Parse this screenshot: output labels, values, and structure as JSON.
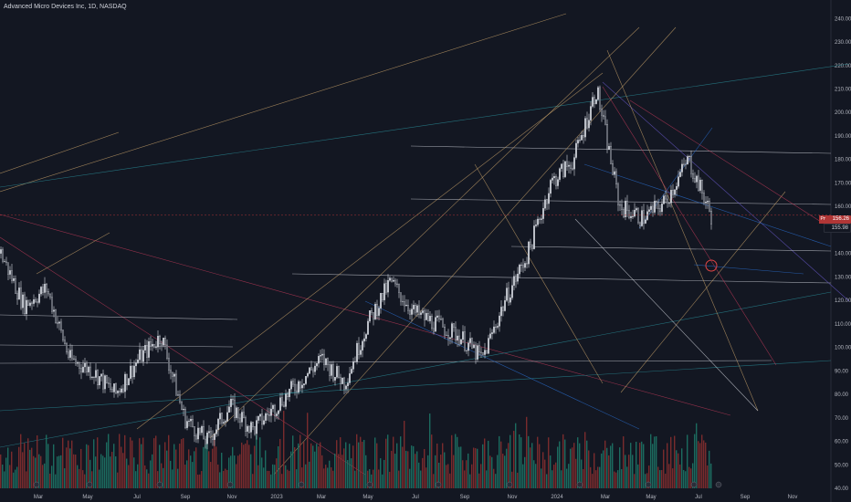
{
  "header": {
    "title": "Advanced Micro Devices Inc, 1D, NASDAQ"
  },
  "price_tags": {
    "last": "156.26",
    "prev": "155.98",
    "label": "Prv"
  },
  "colors": {
    "background": "#131722",
    "candle": "#d1d4dc",
    "vol_up": "#1e7a6a",
    "vol_down": "#8c2f2f",
    "axis_text": "#b2b5be",
    "marker_circle": "#e04545"
  },
  "chart_data": {
    "type": "candlestick",
    "title": "Advanced Micro Devices Inc, 1D, NASDAQ",
    "y_ticks": [
      40,
      50,
      60,
      70,
      80,
      90,
      100,
      110,
      120,
      130,
      140,
      150,
      160,
      170,
      180,
      190,
      200,
      210,
      220,
      230,
      240
    ],
    "x_ticks": [
      "Mar",
      "May",
      "Jul",
      "Sep",
      "Nov",
      "2023",
      "Mar",
      "May",
      "Jul",
      "Sep",
      "Nov",
      "2024",
      "Mar",
      "May",
      "Jul",
      "Sep",
      "Nov"
    ],
    "ylim": [
      40,
      244
    ],
    "price_path": [
      [
        "2022-01",
        140
      ],
      [
        "2022-02",
        118
      ],
      [
        "2022-03",
        125
      ],
      [
        "2022-04",
        95
      ],
      [
        "2022-05",
        90
      ],
      [
        "2022-06",
        80
      ],
      [
        "2022-07",
        95
      ],
      [
        "2022-08",
        105
      ],
      [
        "2022-09",
        70
      ],
      [
        "2022-10",
        60
      ],
      [
        "2022-11",
        75
      ],
      [
        "2022-12",
        65
      ],
      [
        "2023-01",
        75
      ],
      [
        "2023-02",
        85
      ],
      [
        "2023-03",
        95
      ],
      [
        "2023-04",
        85
      ],
      [
        "2023-05",
        110
      ],
      [
        "2023-06",
        128
      ],
      [
        "2023-07",
        115
      ],
      [
        "2023-08",
        110
      ],
      [
        "2023-09",
        105
      ],
      [
        "2023-10",
        95
      ],
      [
        "2023-11",
        120
      ],
      [
        "2023-12",
        140
      ],
      [
        "2024-01",
        170
      ],
      [
        "2024-02",
        180
      ],
      [
        "2024-03",
        210
      ],
      [
        "2024-04",
        160
      ],
      [
        "2024-05",
        155
      ],
      [
        "2024-06",
        162
      ],
      [
        "2024-07",
        180
      ],
      [
        "2024-08",
        156
      ]
    ],
    "last_price": 156.26,
    "grid": false
  }
}
